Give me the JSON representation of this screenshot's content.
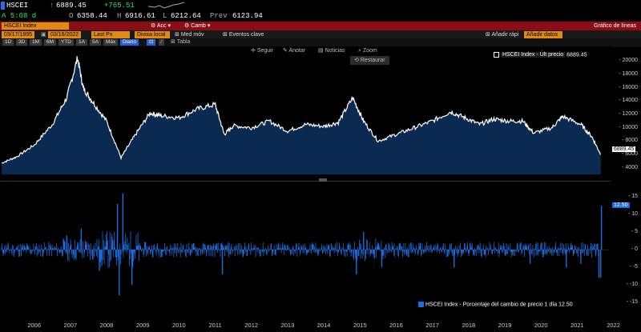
{
  "quote": {
    "ticker": "HSCEI",
    "last": "6889.45",
    "change": "+765.51",
    "time": "A 5:08 d",
    "open_label": "O",
    "open": "6358.44",
    "high_label": "H",
    "high": "6916.61",
    "low_label": "L",
    "low": "6212.64",
    "prev_label": "Prev",
    "prev": "6123.94"
  },
  "toolbar_top": {
    "security": "HSCEI Index",
    "actions": "Acc",
    "compare": "Camb",
    "title_right": "Gráfico de líneas"
  },
  "toolbar_dates": {
    "start": "03/17/1995",
    "end": "03/16/2022",
    "field": "Last Px",
    "currency": "Divisa local",
    "med_mov": "Med móv",
    "events": "Eventos clave",
    "quick_add": "Añadir rápi",
    "add_data": "Añadir datos"
  },
  "periods": [
    "1D",
    "3D",
    "1M",
    "6M",
    "YTD",
    "1A",
    "5A",
    "Máx"
  ],
  "freq": "Diario",
  "table": "Tabla",
  "chart_tools": {
    "follow": "Seguir",
    "annotate": "Anotar",
    "news": "Noticias",
    "zoom": "Zoom",
    "restore": "Restaurar"
  },
  "legend_price": "HSCEI Index - Últ precio",
  "legend_price_value": "6889.45",
  "legend_pct": "HSCEI Index - Porcentaje del cambio de precio 1 día",
  "legend_pct_value": "12.50",
  "price_ticks": [
    "20000",
    "18000",
    "16000",
    "14000",
    "12000",
    "10000",
    "8000",
    "6000",
    "4000"
  ],
  "pct_ticks": [
    "15",
    "10",
    "5",
    "0",
    "-5",
    "-10",
    "-15"
  ],
  "colors": {
    "price_fill": "#0b2a52",
    "price_line": "#ffffff",
    "pct_bar": "#1a6de0",
    "accent": "#e08a16",
    "red_bar": "#8b0d16"
  },
  "chart_data": [
    {
      "type": "area",
      "title": "",
      "series": [
        {
          "name": "HSCEI Index - Últ precio",
          "x": [
            2005.6,
            2006.0,
            2006.5,
            2007.0,
            2007.4,
            2007.7,
            2007.85,
            2008.1,
            2008.5,
            2008.9,
            2009.3,
            2009.7,
            2010.0,
            2010.5,
            2011.0,
            2011.5,
            2011.75,
            2012.0,
            2012.5,
            2013.0,
            2013.5,
            2014.0,
            2014.5,
            2014.9,
            2015.3,
            2015.6,
            2016.0,
            2016.5,
            2017.0,
            2017.5,
            2018.0,
            2018.4,
            2018.8,
            2019.2,
            2019.6,
            2020.0,
            2020.3,
            2020.8,
            2021.1,
            2021.6,
            2021.9,
            2022.15
          ],
          "y": [
            4700,
            5600,
            7400,
            10500,
            14500,
            20500,
            16000,
            14000,
            11000,
            5500,
            9000,
            12200,
            11800,
            11500,
            12800,
            13500,
            9000,
            10300,
            10000,
            11000,
            9500,
            10500,
            10200,
            10800,
            14500,
            11000,
            8000,
            9000,
            10000,
            11000,
            12400,
            11500,
            10500,
            11300,
            11000,
            11000,
            9200,
            10000,
            11700,
            10500,
            8700,
            6000
          ]
        }
      ],
      "ylim": [
        3000,
        21000
      ],
      "xlim": [
        2005.6,
        2022.2
      ]
    },
    {
      "type": "bar",
      "title": "",
      "series": [
        {
          "name": "HSCEI Index - Porcentaje del cambio de precio 1 día",
          "x": [
            2007.4,
            2007.8,
            2008.3,
            2008.8,
            2008.85,
            2008.95,
            2009.2,
            2011.7,
            2015.4,
            2015.6,
            2016.1,
            2018.1,
            2020.2,
            2021.2,
            2021.6,
            2022.1,
            2022.15,
            2022.17
          ],
          "y": [
            4,
            6,
            -6,
            13,
            -13,
            16,
            -10,
            -7,
            -7,
            5,
            -5,
            -5,
            -4,
            -5,
            -4,
            -8,
            -8,
            12.5
          ]
        }
      ],
      "ylim": [
        -15,
        18
      ]
    }
  ],
  "years": [
    "2006",
    "2007",
    "2008",
    "2009",
    "2010",
    "2011",
    "2012",
    "2013",
    "2014",
    "2015",
    "2016",
    "2017",
    "2018",
    "2019",
    "2020",
    "2021",
    "2022"
  ]
}
